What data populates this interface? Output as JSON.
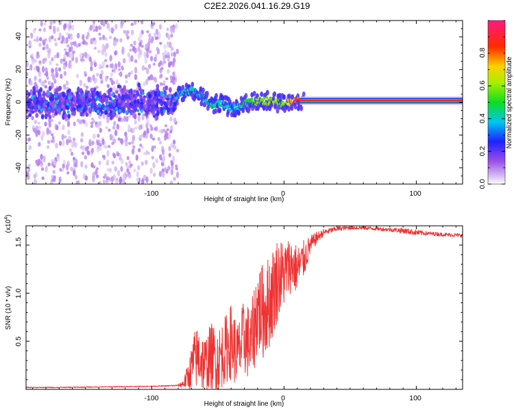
{
  "figure_title": "C2E2.2026.041.16.29.G19",
  "colors": {
    "line": "#ee3333",
    "frame": "#000000",
    "background": "#ffffff"
  },
  "chart_data": [
    {
      "type": "heatmap",
      "title": "C2E2.2026.041.16.29.G19",
      "xlabel": "Height of straight line (km)",
      "ylabel": "Frequency (Hz)",
      "xlim": [
        -195,
        135
      ],
      "ylim": [
        -50,
        50
      ],
      "x_ticks": [
        -100,
        0,
        100
      ],
      "x_tick_labels": [
        "-100",
        "0",
        "100"
      ],
      "y_ticks": [
        -40,
        -20,
        0,
        20,
        40
      ],
      "y_tick_labels": [
        "-40",
        "-20",
        "0",
        "20",
        "40"
      ],
      "colorbar": {
        "label": "Normalized spectral amplitude",
        "range": [
          0,
          1
        ],
        "ticks": [
          0.0,
          0.2,
          0.4,
          0.6,
          0.8
        ],
        "tick_labels": [
          "0.0",
          "0.2",
          "0.4",
          "0.6",
          "0.8"
        ],
        "colormap": "rainbow (white-violet-blue-cyan-green-yellow-red-magenta)"
      },
      "signal_track": {
        "description": "Dominant frequency ridge versus height",
        "points": [
          {
            "x": -80,
            "y": 6,
            "v": 0.35
          },
          {
            "x": -70,
            "y": 7,
            "v": 0.4
          },
          {
            "x": -62,
            "y": 4,
            "v": 0.35
          },
          {
            "x": -55,
            "y": -2,
            "v": 0.45
          },
          {
            "x": -48,
            "y": 0,
            "v": 0.4
          },
          {
            "x": -40,
            "y": -4,
            "v": 0.35
          },
          {
            "x": -30,
            "y": -1,
            "v": 0.45
          },
          {
            "x": -20,
            "y": 1,
            "v": 0.55
          },
          {
            "x": -10,
            "y": 1,
            "v": 0.6
          },
          {
            "x": -2,
            "y": -1,
            "v": 0.55
          },
          {
            "x": 5,
            "y": 0,
            "v": 0.7
          },
          {
            "x": 12,
            "y": 1,
            "v": 0.85
          },
          {
            "x": 135,
            "y": 1,
            "v": 0.9
          }
        ],
        "noise_region_x": [
          -195,
          -80
        ],
        "noise_spread_hz": 50
      }
    },
    {
      "type": "line",
      "title": "",
      "xlabel": "Height of straight line (km)",
      "ylabel": "SNR (10 * v/v)",
      "y_multiplier_label": "(x10",
      "y_multiplier_exp": "4",
      "y_multiplier_close": ")",
      "xlim": [
        -195,
        135
      ],
      "ylim": [
        0,
        17
      ],
      "x_ticks": [
        -100,
        0,
        100
      ],
      "x_tick_labels": [
        "-100",
        "0",
        "100"
      ],
      "y_ticks": [
        5,
        10,
        15
      ],
      "y_tick_labels": [
        "0.5",
        "1.0",
        "1.5"
      ],
      "series": [
        {
          "name": "SNR",
          "x": [
            -195,
            -170,
            -140,
            -110,
            -90,
            -80,
            -76,
            -72,
            -68,
            -64,
            -60,
            -55,
            -50,
            -45,
            -40,
            -35,
            -30,
            -25,
            -20,
            -15,
            -10,
            -5,
            0,
            5,
            10,
            15,
            20,
            25,
            30,
            40,
            50,
            60,
            70,
            80,
            90,
            100,
            110,
            120,
            135
          ],
          "values": [
            0.2,
            0.2,
            0.25,
            0.3,
            0.35,
            0.4,
            0.6,
            1.5,
            3.0,
            3.5,
            2.5,
            3.5,
            3.0,
            4.0,
            5.0,
            3.5,
            5.5,
            4.5,
            8.5,
            8.0,
            9.5,
            11.5,
            12.0,
            13.0,
            12.5,
            13.5,
            15.0,
            15.8,
            16.3,
            16.7,
            16.8,
            16.8,
            16.7,
            16.6,
            16.5,
            16.3,
            16.2,
            16.1,
            16.0
          ],
          "spread": [
            0.05,
            0.05,
            0.05,
            0.05,
            0.05,
            0.1,
            0.5,
            1.5,
            3.0,
            3.5,
            3.0,
            3.5,
            3.5,
            3.5,
            4.0,
            3.5,
            4.0,
            4.0,
            5.0,
            5.0,
            5.0,
            4.5,
            3.5,
            3.0,
            2.5,
            2.0,
            1.0,
            0.6,
            0.35,
            0.25,
            0.2,
            0.2,
            0.2,
            0.2,
            0.3,
            0.3,
            0.2,
            0.2,
            0.2
          ]
        }
      ]
    }
  ]
}
